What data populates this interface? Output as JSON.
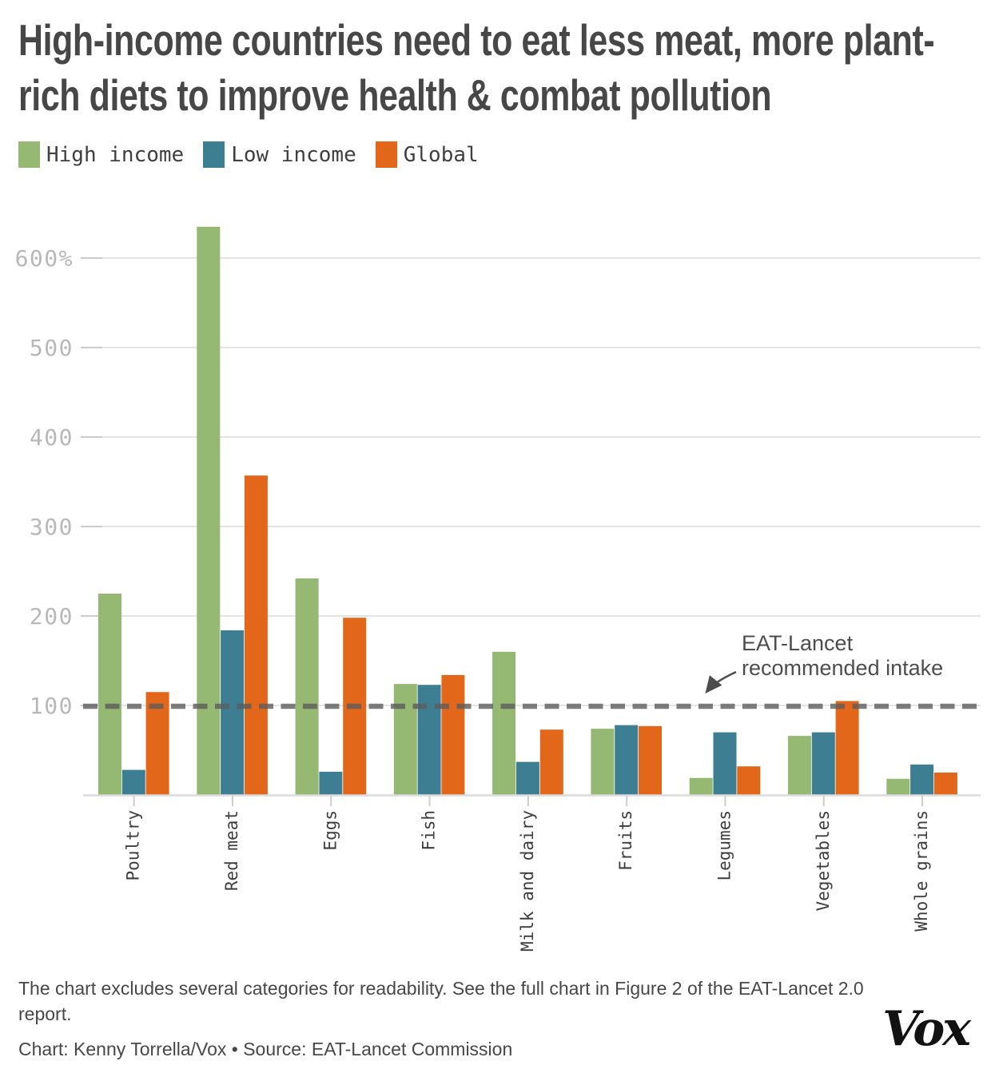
{
  "title": "High-income countries need to eat less meat, more plant-rich diets to improve health & combat pollution",
  "legend": {
    "items": [
      {
        "label": "High income",
        "color": "#95b873"
      },
      {
        "label": "Low income",
        "color": "#3d7e92"
      },
      {
        "label": "Global",
        "color": "#e2671b"
      }
    ]
  },
  "chart_data": {
    "type": "bar",
    "title": "High-income countries need to eat less meat, more plant-rich diets to improve health & combat pollution",
    "categories": [
      "Poultry",
      "Red meat",
      "Eggs",
      "Fish",
      "Milk and dairy",
      "Fruits",
      "Legumes",
      "Vegetables",
      "Whole grains"
    ],
    "series": [
      {
        "name": "High income",
        "color": "#95b873",
        "values": [
          225,
          635,
          242,
          124,
          160,
          74,
          19,
          66,
          18
        ]
      },
      {
        "name": "Low income",
        "color": "#3d7e92",
        "values": [
          28,
          184,
          26,
          123,
          37,
          78,
          70,
          70,
          34
        ]
      },
      {
        "name": "Global",
        "color": "#e2671b",
        "values": [
          115,
          357,
          198,
          134,
          73,
          77,
          32,
          105,
          25
        ]
      }
    ],
    "xlabel": "",
    "ylabel": "",
    "unit": "%",
    "ylim": [
      0,
      650
    ],
    "grid": true,
    "legend_position": "top-left",
    "y_axis": {
      "tick_values": [
        100,
        200,
        300,
        400,
        500,
        600
      ],
      "tick_labels": [
        "100",
        "200",
        "300",
        "400",
        "500",
        "600%"
      ]
    },
    "reference_line": {
      "value": 100,
      "style": "dashed",
      "color": "#5c5c5c",
      "label": "EAT-Lancet recommended intake"
    }
  },
  "annotation": {
    "line1": "EAT-Lancet",
    "line2": "recommended intake"
  },
  "footer": {
    "note": "The chart excludes several categories for readability. See the full chart in Figure 2 of the EAT-Lancet 2.0 report.",
    "credit": "Chart: Kenny Torrella/Vox • Source: EAT-Lancet Commission",
    "logo": "Vox"
  }
}
